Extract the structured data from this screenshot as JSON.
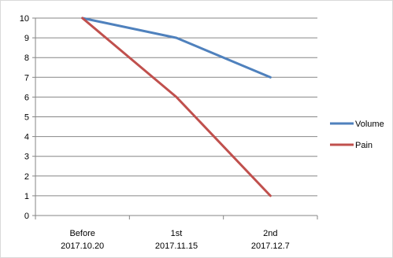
{
  "chart_data": {
    "type": "line",
    "title": "",
    "xlabel": "",
    "ylabel": "",
    "categories": [
      [
        "Before",
        "2017.10.20"
      ],
      [
        "1st",
        "2017.11.15"
      ],
      [
        "2nd",
        "2017.12.7"
      ]
    ],
    "ylim": [
      0,
      10
    ],
    "yticks": [
      0,
      1,
      2,
      3,
      4,
      5,
      6,
      7,
      8,
      9,
      10
    ],
    "grid": true,
    "legend_position": "right",
    "series": [
      {
        "name": "Volume",
        "values": [
          10,
          9,
          7
        ],
        "color": "#4F81BD"
      },
      {
        "name": "Pain",
        "values": [
          10,
          6,
          1
        ],
        "color": "#C0504D"
      }
    ]
  }
}
